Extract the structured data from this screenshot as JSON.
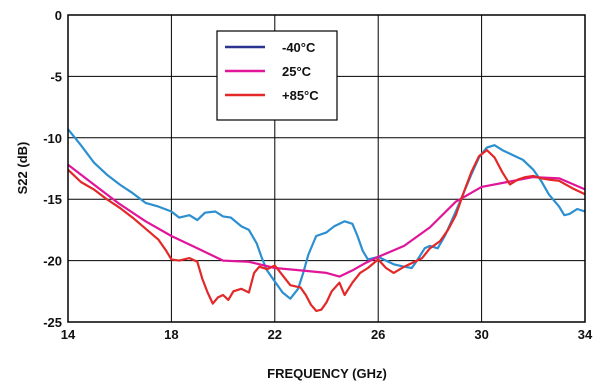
{
  "chart_data": {
    "type": "line",
    "xlabel": "FREQUENCY (GHz)",
    "ylabel": "S22 (dB)",
    "xlim": [
      14,
      34
    ],
    "ylim": [
      -25,
      0
    ],
    "x_ticks": [
      "14",
      "18",
      "22",
      "26",
      "30",
      "34"
    ],
    "y_ticks": [
      "0",
      "-5",
      "-10",
      "-15",
      "-20",
      "-25"
    ],
    "grid": true,
    "legend_position": "top-center",
    "series": [
      {
        "name": "-40°C",
        "color": "#2b8fd0",
        "points": [
          [
            14,
            -9.3
          ],
          [
            14.5,
            -10.6
          ],
          [
            15,
            -12.0
          ],
          [
            15.5,
            -13.0
          ],
          [
            16,
            -13.8
          ],
          [
            16.5,
            -14.5
          ],
          [
            17,
            -15.3
          ],
          [
            17.5,
            -15.6
          ],
          [
            18,
            -16.0
          ],
          [
            18.3,
            -16.5
          ],
          [
            18.7,
            -16.3
          ],
          [
            19,
            -16.7
          ],
          [
            19.3,
            -16.1
          ],
          [
            19.7,
            -16.0
          ],
          [
            20,
            -16.4
          ],
          [
            20.3,
            -16.5
          ],
          [
            20.7,
            -17.2
          ],
          [
            21,
            -17.5
          ],
          [
            21.3,
            -18.6
          ],
          [
            21.5,
            -19.8
          ],
          [
            21.7,
            -20.8
          ],
          [
            22,
            -21.7
          ],
          [
            22.3,
            -22.6
          ],
          [
            22.6,
            -23.1
          ],
          [
            22.9,
            -22.3
          ],
          [
            23.1,
            -21.0
          ],
          [
            23.3,
            -19.5
          ],
          [
            23.6,
            -18.0
          ],
          [
            24,
            -17.7
          ],
          [
            24.3,
            -17.2
          ],
          [
            24.7,
            -16.8
          ],
          [
            25,
            -17.0
          ],
          [
            25.2,
            -18.0
          ],
          [
            25.4,
            -19.2
          ],
          [
            25.6,
            -19.9
          ],
          [
            26,
            -19.7
          ],
          [
            26.3,
            -20.0
          ],
          [
            26.6,
            -20.3
          ],
          [
            27,
            -20.5
          ],
          [
            27.3,
            -20.6
          ],
          [
            27.5,
            -20.0
          ],
          [
            27.8,
            -19.0
          ],
          [
            28,
            -18.8
          ],
          [
            28.3,
            -19.0
          ],
          [
            28.6,
            -17.9
          ],
          [
            29,
            -16.0
          ],
          [
            29.3,
            -14.5
          ],
          [
            29.6,
            -13.0
          ],
          [
            29.9,
            -11.6
          ],
          [
            30.2,
            -10.8
          ],
          [
            30.5,
            -10.6
          ],
          [
            30.8,
            -11.0
          ],
          [
            31.2,
            -11.4
          ],
          [
            31.6,
            -11.8
          ],
          [
            32,
            -12.6
          ],
          [
            32.3,
            -13.5
          ],
          [
            32.6,
            -14.6
          ],
          [
            33,
            -15.6
          ],
          [
            33.2,
            -16.3
          ],
          [
            33.4,
            -16.2
          ],
          [
            33.7,
            -15.8
          ],
          [
            34,
            -16.0
          ]
        ]
      },
      {
        "name": "25°C",
        "color": "#e0159a",
        "points": [
          [
            14,
            -12.2
          ],
          [
            15,
            -13.8
          ],
          [
            16,
            -15.4
          ],
          [
            17,
            -16.8
          ],
          [
            18,
            -18.0
          ],
          [
            19,
            -19.0
          ],
          [
            20,
            -20.0
          ],
          [
            21,
            -20.1
          ],
          [
            22,
            -20.6
          ],
          [
            23,
            -20.8
          ],
          [
            24,
            -21.0
          ],
          [
            24.5,
            -21.3
          ],
          [
            25,
            -20.8
          ],
          [
            25.5,
            -20.2
          ],
          [
            26,
            -19.7
          ],
          [
            27,
            -18.8
          ],
          [
            28,
            -17.3
          ],
          [
            29,
            -15.2
          ],
          [
            30,
            -14.0
          ],
          [
            31,
            -13.6
          ],
          [
            32,
            -13.2
          ],
          [
            33,
            -13.3
          ],
          [
            34,
            -14.2
          ]
        ]
      },
      {
        "name": "+85°C",
        "color": "#e22828",
        "points": [
          [
            14,
            -12.6
          ],
          [
            14.5,
            -13.6
          ],
          [
            15,
            -14.2
          ],
          [
            15.5,
            -15.0
          ],
          [
            16,
            -15.7
          ],
          [
            16.5,
            -16.5
          ],
          [
            17,
            -17.4
          ],
          [
            17.5,
            -18.3
          ],
          [
            17.8,
            -19.2
          ],
          [
            18,
            -19.9
          ],
          [
            18.3,
            -20.0
          ],
          [
            18.7,
            -19.8
          ],
          [
            19,
            -20.1
          ],
          [
            19.2,
            -21.5
          ],
          [
            19.4,
            -22.6
          ],
          [
            19.6,
            -23.5
          ],
          [
            19.8,
            -23.0
          ],
          [
            20,
            -22.8
          ],
          [
            20.2,
            -23.2
          ],
          [
            20.4,
            -22.5
          ],
          [
            20.7,
            -22.3
          ],
          [
            21,
            -22.6
          ],
          [
            21.2,
            -21.0
          ],
          [
            21.4,
            -20.5
          ],
          [
            21.7,
            -20.7
          ],
          [
            22,
            -20.4
          ],
          [
            22.3,
            -21.2
          ],
          [
            22.6,
            -22.0
          ],
          [
            23,
            -22.2
          ],
          [
            23.2,
            -22.8
          ],
          [
            23.4,
            -23.6
          ],
          [
            23.6,
            -24.1
          ],
          [
            23.8,
            -24.0
          ],
          [
            24,
            -23.4
          ],
          [
            24.2,
            -22.5
          ],
          [
            24.5,
            -21.8
          ],
          [
            24.7,
            -22.8
          ],
          [
            25,
            -21.8
          ],
          [
            25.3,
            -21.0
          ],
          [
            25.6,
            -20.6
          ],
          [
            26,
            -19.9
          ],
          [
            26.3,
            -20.6
          ],
          [
            26.6,
            -21.0
          ],
          [
            27,
            -20.5
          ],
          [
            27.3,
            -20.2
          ],
          [
            27.7,
            -19.8
          ],
          [
            28,
            -19.0
          ],
          [
            28.4,
            -18.4
          ],
          [
            28.7,
            -17.5
          ],
          [
            29,
            -16.3
          ],
          [
            29.3,
            -14.5
          ],
          [
            29.6,
            -12.8
          ],
          [
            29.9,
            -11.5
          ],
          [
            30.2,
            -11.0
          ],
          [
            30.5,
            -11.6
          ],
          [
            30.8,
            -12.8
          ],
          [
            31.1,
            -13.8
          ],
          [
            31.4,
            -13.4
          ],
          [
            31.7,
            -13.2
          ],
          [
            32,
            -13.1
          ],
          [
            32.3,
            -13.3
          ],
          [
            32.6,
            -13.4
          ],
          [
            33,
            -13.5
          ],
          [
            33.5,
            -14.1
          ],
          [
            34,
            -14.6
          ]
        ]
      }
    ]
  }
}
